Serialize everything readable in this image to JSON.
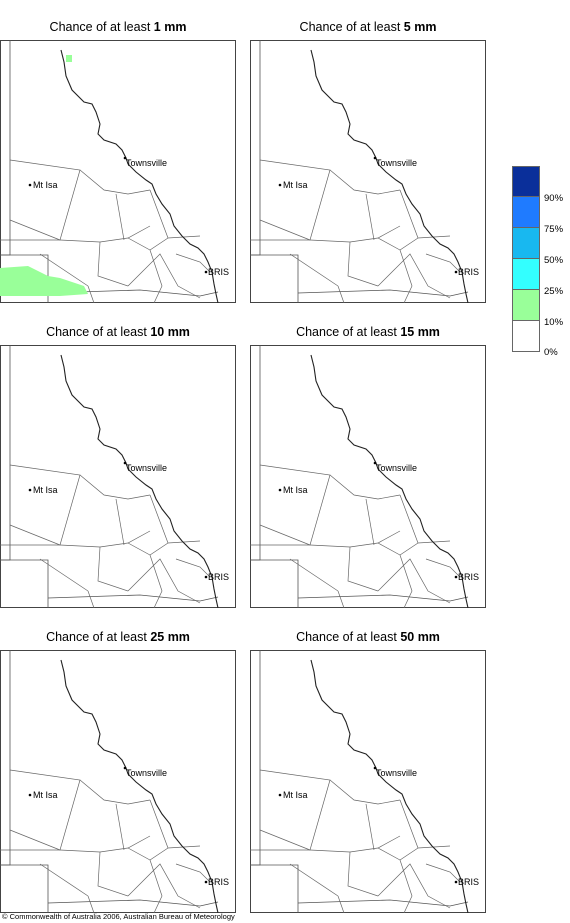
{
  "panels": [
    {
      "prefix": "Chance of at least ",
      "amount": "1 mm"
    },
    {
      "prefix": "Chance of at least ",
      "amount": "5 mm"
    },
    {
      "prefix": "Chance of at least ",
      "amount": "10 mm"
    },
    {
      "prefix": "Chance of at least ",
      "amount": "15 mm"
    },
    {
      "prefix": "Chance of at least ",
      "amount": "25 mm"
    },
    {
      "prefix": "Chance of at least ",
      "amount": "50 mm"
    }
  ],
  "places": {
    "town1": "Townsville",
    "town2": "Mt Isa",
    "town3": "BRIS"
  },
  "legend": {
    "labels": [
      "90%",
      "75%",
      "50%",
      "25%",
      "10%",
      "0%"
    ],
    "colors": [
      "#0a2f9a",
      "#1f7bff",
      "#18b8f0",
      "#33ffff",
      "#99ff99",
      "#ffffff"
    ]
  },
  "rain_colors": {
    "low": "#99ff99"
  },
  "copyright": "© Commonwealth of Australia 2006, Australian Bureau of Meteorology"
}
